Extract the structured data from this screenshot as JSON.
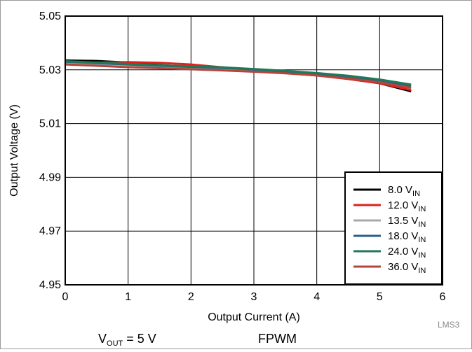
{
  "chart_data": {
    "type": "line",
    "xlabel": "Output Current (A)",
    "ylabel": "Output Voltage (V)",
    "xlim": [
      0,
      6
    ],
    "ylim": [
      4.95,
      5.05
    ],
    "xticks": [
      "0",
      "1",
      "2",
      "3",
      "4",
      "5",
      "6"
    ],
    "yticks": [
      "4.95",
      "4.97",
      "4.99",
      "5.01",
      "5.03",
      "5.05"
    ],
    "grid": true,
    "legend_position": "bottom-right",
    "series": [
      {
        "name": "8.0 V",
        "name_sub": "IN",
        "color": "#000000",
        "x": [
          0,
          0.5,
          1,
          1.5,
          2,
          2.5,
          3,
          3.5,
          4,
          4.5,
          5,
          5.5
        ],
        "y": [
          5.0335,
          5.0333,
          5.0327,
          5.0318,
          5.031,
          5.0303,
          5.0297,
          5.0289,
          5.028,
          5.0267,
          5.025,
          5.022
        ]
      },
      {
        "name": "12.0 V",
        "name_sub": "IN",
        "color": "#e0201c",
        "x": [
          0,
          0.5,
          1,
          1.5,
          2,
          2.5,
          3,
          3.5,
          4,
          4.5,
          5,
          5.5
        ],
        "y": [
          5.0325,
          5.0327,
          5.0329,
          5.0326,
          5.032,
          5.0309,
          5.0298,
          5.0289,
          5.0279,
          5.0266,
          5.025,
          5.0225
        ]
      },
      {
        "name": "13.5 V",
        "name_sub": "IN",
        "color": "#a8a8a8",
        "x": [
          0,
          0.5,
          1,
          1.5,
          2,
          2.5,
          3,
          3.5,
          4,
          4.5,
          5,
          5.5
        ],
        "y": [
          5.0328,
          5.0322,
          5.0318,
          5.0313,
          5.0309,
          5.0305,
          5.0299,
          5.0292,
          5.0283,
          5.0272,
          5.0257,
          5.0232
        ]
      },
      {
        "name": "18.0 V",
        "name_sub": "IN",
        "color": "#2d5f8a",
        "x": [
          0,
          0.5,
          1,
          1.5,
          2,
          2.5,
          3,
          3.5,
          4,
          4.5,
          5,
          5.5
        ],
        "y": [
          5.033,
          5.0325,
          5.032,
          5.0315,
          5.0311,
          5.0307,
          5.0301,
          5.0294,
          5.0286,
          5.0275,
          5.0261,
          5.024
        ]
      },
      {
        "name": "24.0 V",
        "name_sub": "IN",
        "color": "#1f7a55",
        "x": [
          0,
          0.5,
          1,
          1.5,
          2,
          2.5,
          3,
          3.5,
          4,
          4.5,
          5,
          5.5
        ],
        "y": [
          5.0332,
          5.0327,
          5.0322,
          5.0317,
          5.0313,
          5.0309,
          5.0303,
          5.0296,
          5.0288,
          5.0278,
          5.0264,
          5.0245
        ]
      },
      {
        "name": "36.0 V",
        "name_sub": "IN",
        "color": "#b5453c",
        "x": [
          0,
          0.5,
          1,
          1.5,
          2,
          2.5,
          3,
          3.5,
          4,
          4.5,
          5,
          5.5
        ],
        "y": [
          5.032,
          5.0315,
          5.031,
          5.0306,
          5.0302,
          5.0298,
          5.0293,
          5.0287,
          5.0279,
          5.0268,
          5.0253,
          5.0233
        ]
      }
    ]
  },
  "footer": {
    "vout_main": "V",
    "vout_sub": "OUT",
    "vout_rest": " = 5 V",
    "mode": "FPWM",
    "code": "LMS3"
  }
}
